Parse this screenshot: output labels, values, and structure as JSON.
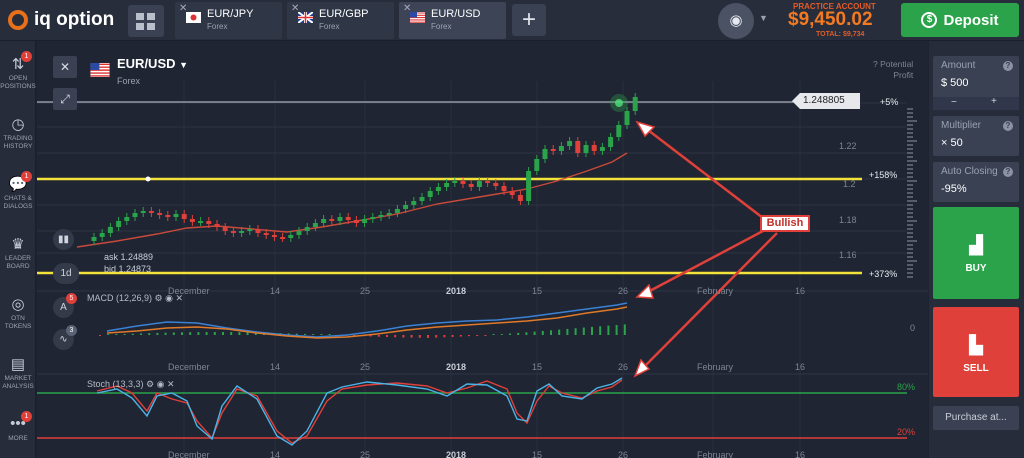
{
  "brand": {
    "logo_text": "iq option"
  },
  "tabs": [
    {
      "name": "EUR/JPY",
      "sub": "Forex"
    },
    {
      "name": "EUR/GBP",
      "sub": "Forex"
    },
    {
      "name": "EUR/USD",
      "sub": "Forex"
    }
  ],
  "account": {
    "label": "PRACTICE ACCOUNT",
    "balance": "$9,450.02",
    "total": "TOTAL: $9,734"
  },
  "deposit": {
    "label": "Deposit"
  },
  "sidebar": {
    "items": [
      {
        "label": "OPEN POSITIONS",
        "icon": "arrows-icon",
        "badge": "1"
      },
      {
        "label": "TRADING HISTORY",
        "icon": "history-icon",
        "badge": ""
      },
      {
        "label": "CHATS & DIALOGS",
        "icon": "chat-icon",
        "badge": "1"
      },
      {
        "label": "LEADER BOARD",
        "icon": "trophy-icon",
        "badge": ""
      },
      {
        "label": "OTN TOKENS",
        "icon": "token-icon",
        "badge": ""
      },
      {
        "label": "MARKET ANALYSIS",
        "icon": "analysis-icon",
        "badge": ""
      },
      {
        "label": "MORE",
        "icon": "more-icon",
        "badge": "1"
      }
    ]
  },
  "chart_header": {
    "symbol": "EUR/USD",
    "type": "Forex"
  },
  "quote": {
    "ask": "ask 1.24889",
    "bid": "bid 1.24873",
    "timeframe": "1d"
  },
  "indicators": {
    "macd": "MACD (12,26,9)",
    "stoch": "Stoch (13,3,3)",
    "tool_counts": [
      "5",
      "3"
    ]
  },
  "price_tag": "1.248805",
  "potential_profit": "Potential\nProfit",
  "profits": [
    "+5%",
    "+158%",
    "+373%"
  ],
  "price_axis": [
    "1.22",
    "1.2",
    "1.18",
    "1.16"
  ],
  "macd_zero": "0",
  "stoch_levels": [
    "80%",
    "20%"
  ],
  "date_axis": [
    "December",
    "14",
    "25",
    "2018",
    "15",
    "26",
    "February",
    "16"
  ],
  "annotation": "Bullish",
  "panel": {
    "amount_title": "Amount",
    "amount_value": "$  500",
    "multiplier_title": "Multiplier",
    "multiplier_value": "× 50",
    "auto_title": "Auto Closing",
    "auto_value": "-95%",
    "buy": "BUY",
    "sell": "SELL",
    "purchase": "Purchase at..."
  },
  "colors": {
    "buy": "#2aa34a",
    "sell": "#e0403a",
    "accent": "#f47a21",
    "level": "#f2e23a"
  }
}
